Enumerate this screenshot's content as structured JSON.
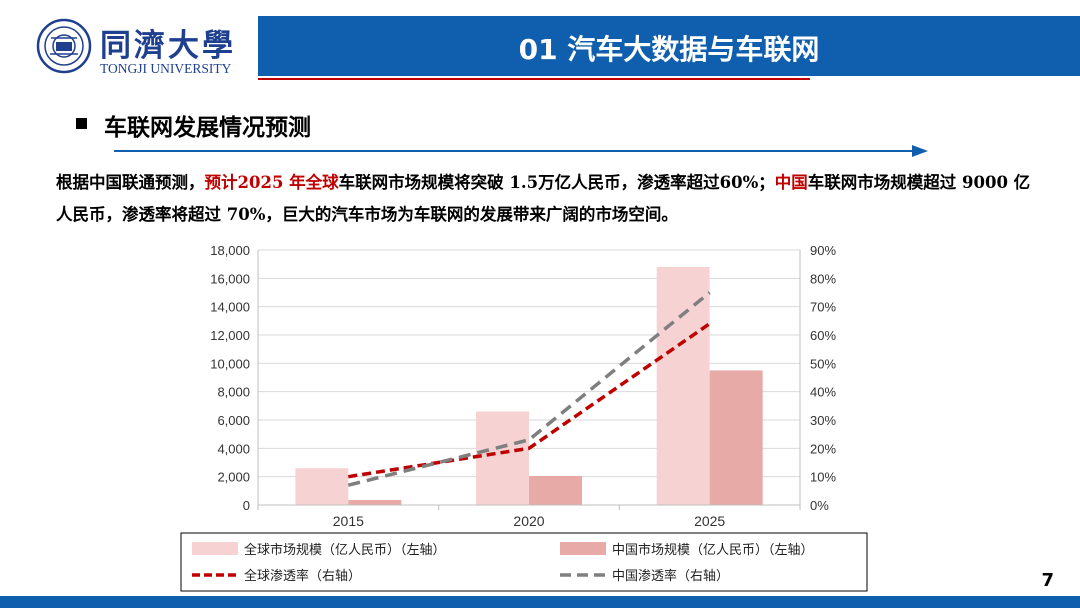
{
  "header": {
    "logo_cn": "同濟大學",
    "logo_en": "TONGJI UNIVERSITY",
    "title": "01 汽车大数据与车联网"
  },
  "section": {
    "title": "车联网发展情况预测"
  },
  "paragraph": {
    "p1": "根据中国联通预测，",
    "p2": "预计2025 年全球",
    "p3": "车联网市场规模将突破 1.5万亿人民币，渗透率超过60%；",
    "p4": "中国",
    "p5": "车联网市场规模超过 9000 亿人民币，渗透率将超过 70%，巨大的汽车市场为车联网的发展带来广阔的市场空间。"
  },
  "chart_data": {
    "type": "bar",
    "categories": [
      "2015",
      "2020",
      "2025"
    ],
    "series": [
      {
        "name": "全球市场规模（亿人民币）（左轴）",
        "kind": "bar",
        "axis": "left",
        "color": "#f6d3d2",
        "values": [
          2600,
          6600,
          16800
        ]
      },
      {
        "name": "中国市场规模（亿人民币）（左轴）",
        "kind": "bar",
        "axis": "left",
        "color": "#e8aaa7",
        "values": [
          350,
          2050,
          9500
        ]
      },
      {
        "name": "全球渗透率（右轴）",
        "kind": "line",
        "axis": "right",
        "color": "#c00000",
        "style": "dashed",
        "values": [
          10,
          20,
          64
        ]
      },
      {
        "name": "中国渗透率（右轴）",
        "kind": "line",
        "axis": "right",
        "color": "#7f7f7f",
        "style": "dashed",
        "values": [
          7,
          23,
          75
        ]
      }
    ],
    "y_left": {
      "min": 0,
      "max": 18000,
      "ticks": [
        "0",
        "2,000",
        "4,000",
        "6,000",
        "8,000",
        "10,000",
        "12,000",
        "14,000",
        "16,000",
        "18,000"
      ]
    },
    "y_right": {
      "min": 0,
      "max": 90,
      "ticks": [
        "0%",
        "10%",
        "20%",
        "30%",
        "40%",
        "50%",
        "60%",
        "70%",
        "80%",
        "90%"
      ]
    },
    "grid": true,
    "legend_position": "bottom"
  },
  "page_number": "7"
}
